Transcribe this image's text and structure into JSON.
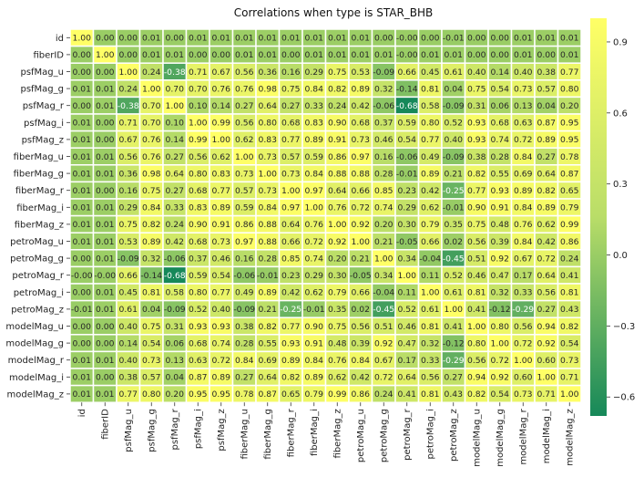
{
  "chart_data": {
    "type": "heatmap",
    "title": "Correlations when type is STAR_BHB",
    "xlabel": "",
    "ylabel": "",
    "labels": [
      "id",
      "fiberID",
      "psfMag_u",
      "psfMag_g",
      "psfMag_r",
      "psfMag_i",
      "psfMag_z",
      "fiberMag_u",
      "fiberMag_g",
      "fiberMag_r",
      "fiberMag_i",
      "fiberMag_z",
      "petroMag_u",
      "petroMag_g",
      "petroMag_r",
      "petroMag_i",
      "petroMag_z",
      "modelMag_u",
      "modelMag_g",
      "modelMag_r",
      "modelMag_i",
      "modelMag_z"
    ],
    "values": [
      [
        1.0,
        0.0,
        0.0,
        0.01,
        0.0,
        0.01,
        0.01,
        0.01,
        0.01,
        0.01,
        0.01,
        0.01,
        0.01,
        0.0,
        -0.0,
        0.0,
        -0.01,
        0.0,
        0.0,
        0.01,
        0.01,
        0.01
      ],
      [
        0.0,
        1.0,
        0.0,
        0.01,
        0.01,
        0.0,
        0.0,
        0.01,
        0.01,
        0.0,
        0.01,
        0.01,
        0.01,
        0.01,
        -0.0,
        0.01,
        0.01,
        0.0,
        0.0,
        0.01,
        0.0,
        0.01
      ],
      [
        0.0,
        0.0,
        1.0,
        0.24,
        -0.38,
        0.71,
        0.67,
        0.56,
        0.36,
        0.16,
        0.29,
        0.75,
        0.53,
        -0.09,
        0.66,
        0.45,
        0.61,
        0.4,
        0.14,
        0.4,
        0.38,
        0.77
      ],
      [
        0.01,
        0.01,
        0.24,
        1.0,
        0.7,
        0.7,
        0.76,
        0.76,
        0.98,
        0.75,
        0.84,
        0.82,
        0.89,
        0.32,
        -0.14,
        0.81,
        0.04,
        0.75,
        0.54,
        0.73,
        0.57,
        0.8
      ],
      [
        0.0,
        0.01,
        -0.38,
        0.7,
        1.0,
        0.1,
        0.14,
        0.27,
        0.64,
        0.27,
        0.33,
        0.24,
        0.42,
        -0.06,
        -0.68,
        0.58,
        -0.09,
        0.31,
        0.06,
        0.13,
        0.04,
        0.2
      ],
      [
        0.01,
        0.0,
        0.71,
        0.7,
        0.1,
        1.0,
        0.99,
        0.56,
        0.8,
        0.68,
        0.83,
        0.9,
        0.68,
        0.37,
        0.59,
        0.8,
        0.52,
        0.93,
        0.68,
        0.63,
        0.87,
        0.95
      ],
      [
        0.01,
        0.0,
        0.67,
        0.76,
        0.14,
        0.99,
        1.0,
        0.62,
        0.83,
        0.77,
        0.89,
        0.91,
        0.73,
        0.46,
        0.54,
        0.77,
        0.4,
        0.93,
        0.74,
        0.72,
        0.89,
        0.95
      ],
      [
        0.01,
        0.01,
        0.56,
        0.76,
        0.27,
        0.56,
        0.62,
        1.0,
        0.73,
        0.57,
        0.59,
        0.86,
        0.97,
        0.16,
        -0.06,
        0.49,
        -0.09,
        0.38,
        0.28,
        0.84,
        0.27,
        0.78
      ],
      [
        0.01,
        0.01,
        0.36,
        0.98,
        0.64,
        0.8,
        0.83,
        0.73,
        1.0,
        0.73,
        0.84,
        0.88,
        0.88,
        0.28,
        -0.01,
        0.89,
        0.21,
        0.82,
        0.55,
        0.69,
        0.64,
        0.87
      ],
      [
        0.01,
        0.0,
        0.16,
        0.75,
        0.27,
        0.68,
        0.77,
        0.57,
        0.73,
        1.0,
        0.97,
        0.64,
        0.66,
        0.85,
        0.23,
        0.42,
        -0.25,
        0.77,
        0.93,
        0.89,
        0.82,
        0.65
      ],
      [
        0.01,
        0.01,
        0.29,
        0.84,
        0.33,
        0.83,
        0.89,
        0.59,
        0.84,
        0.97,
        1.0,
        0.76,
        0.72,
        0.74,
        0.29,
        0.62,
        -0.01,
        0.9,
        0.91,
        0.84,
        0.89,
        0.79
      ],
      [
        0.01,
        0.01,
        0.75,
        0.82,
        0.24,
        0.9,
        0.91,
        0.86,
        0.88,
        0.64,
        0.76,
        1.0,
        0.92,
        0.2,
        0.3,
        0.79,
        0.35,
        0.75,
        0.48,
        0.76,
        0.62,
        0.99
      ],
      [
        0.01,
        0.01,
        0.53,
        0.89,
        0.42,
        0.68,
        0.73,
        0.97,
        0.88,
        0.66,
        0.72,
        0.92,
        1.0,
        0.21,
        -0.05,
        0.66,
        0.02,
        0.56,
        0.39,
        0.84,
        0.42,
        0.86
      ],
      [
        0.0,
        0.01,
        -0.09,
        0.32,
        -0.06,
        0.37,
        0.46,
        0.16,
        0.28,
        0.85,
        0.74,
        0.2,
        0.21,
        1.0,
        0.34,
        -0.04,
        -0.45,
        0.51,
        0.92,
        0.67,
        0.72,
        0.24
      ],
      [
        -0.0,
        -0.0,
        0.66,
        -0.14,
        -0.68,
        0.59,
        0.54,
        -0.06,
        -0.01,
        0.23,
        0.29,
        0.3,
        -0.05,
        0.34,
        1.0,
        0.11,
        0.52,
        0.46,
        0.47,
        0.17,
        0.64,
        0.41
      ],
      [
        0.0,
        0.01,
        0.45,
        0.81,
        0.58,
        0.8,
        0.77,
        0.49,
        0.89,
        0.42,
        0.62,
        0.79,
        0.66,
        -0.04,
        0.11,
        1.0,
        0.61,
        0.81,
        0.32,
        0.33,
        0.56,
        0.81
      ],
      [
        -0.01,
        0.01,
        0.61,
        0.04,
        -0.09,
        0.52,
        0.4,
        -0.09,
        0.21,
        -0.25,
        -0.01,
        0.35,
        0.02,
        -0.45,
        0.52,
        0.61,
        1.0,
        0.41,
        -0.12,
        -0.29,
        0.27,
        0.43
      ],
      [
        0.0,
        0.0,
        0.4,
        0.75,
        0.31,
        0.93,
        0.93,
        0.38,
        0.82,
        0.77,
        0.9,
        0.75,
        0.56,
        0.51,
        0.46,
        0.81,
        0.41,
        1.0,
        0.8,
        0.56,
        0.94,
        0.82
      ],
      [
        0.0,
        0.0,
        0.14,
        0.54,
        0.06,
        0.68,
        0.74,
        0.28,
        0.55,
        0.93,
        0.91,
        0.48,
        0.39,
        0.92,
        0.47,
        0.32,
        -0.12,
        0.8,
        1.0,
        0.72,
        0.92,
        0.54
      ],
      [
        0.01,
        0.01,
        0.4,
        0.73,
        0.13,
        0.63,
        0.72,
        0.84,
        0.69,
        0.89,
        0.84,
        0.76,
        0.84,
        0.67,
        0.17,
        0.33,
        -0.29,
        0.56,
        0.72,
        1.0,
        0.6,
        0.73
      ],
      [
        0.01,
        0.0,
        0.38,
        0.57,
        0.04,
        0.87,
        0.89,
        0.27,
        0.64,
        0.82,
        0.89,
        0.62,
        0.42,
        0.72,
        0.64,
        0.56,
        0.27,
        0.94,
        0.92,
        0.6,
        1.0,
        0.71
      ],
      [
        0.01,
        0.01,
        0.77,
        0.8,
        0.2,
        0.95,
        0.95,
        0.78,
        0.87,
        0.65,
        0.79,
        0.99,
        0.86,
        0.24,
        0.41,
        0.81,
        0.43,
        0.82,
        0.54,
        0.73,
        0.71,
        1.0
      ]
    ],
    "colormap": {
      "low": "#168859",
      "mid": "#b9dd68",
      "high": "#ffff66"
    },
    "vmin": -0.68,
    "vmax": 1.0,
    "colorbar_ticks": [
      "0.9",
      "0.6",
      "0.3",
      "0.0",
      "−0.3",
      "−0.6"
    ],
    "colorbar_tick_values": [
      0.9,
      0.6,
      0.3,
      0.0,
      -0.3,
      -0.6
    ],
    "cell_border_color": "#ffffff",
    "annotation_text_color_dark": "#262626",
    "annotation_text_color_light": "#ffffff"
  }
}
